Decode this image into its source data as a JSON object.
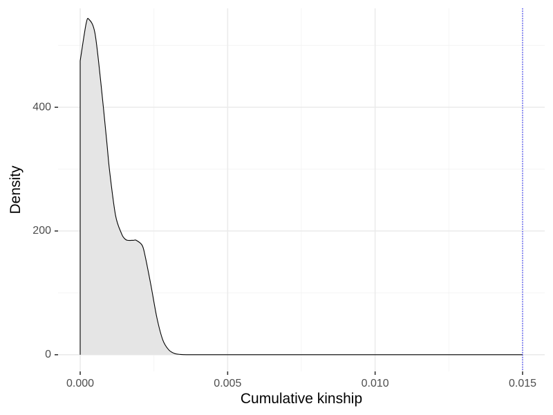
{
  "chart_data": {
    "type": "area",
    "title": "",
    "xlabel": "Cumulative kinship",
    "ylabel": "Density",
    "xlim": [
      -0.00075,
      0.01575
    ],
    "ylim": [
      -27,
      560
    ],
    "x_ticks": [
      0.0,
      0.005,
      0.01,
      0.015
    ],
    "x_tick_labels": [
      "0.000",
      "0.005",
      "0.010",
      "0.015"
    ],
    "y_ticks": [
      0,
      200,
      400
    ],
    "y_tick_labels": [
      "0",
      "200",
      "400"
    ],
    "grid": true,
    "legend": "none",
    "series": [
      {
        "x": [
          0.0,
          0.0002,
          0.0003,
          0.0005,
          0.0007,
          0.0009,
          0.001,
          0.0012,
          0.0014,
          0.0015,
          0.0016,
          0.0018,
          0.0019,
          0.0021,
          0.0022,
          0.0024,
          0.0026,
          0.0028,
          0.003,
          0.0032,
          0.0034,
          0.0036,
          0.004,
          0.005,
          0.007,
          0.01,
          0.015
        ],
        "y": [
          475,
          535,
          542,
          520,
          440,
          345,
          296,
          225,
          196,
          188,
          185,
          185,
          185,
          177,
          160,
          112,
          60,
          24,
          8,
          2,
          0.5,
          0,
          0,
          0,
          0,
          0,
          0
        ]
      }
    ],
    "reference_line": {
      "x": 0.015,
      "style": "dotted"
    },
    "colors": {
      "fill": "#e5e5e5",
      "line": "#000000",
      "reference_line": "#0000ff",
      "grid_major": "#ebebeb",
      "grid_minor": "#f2f2f2",
      "tick_text": "#4d4d4d"
    }
  }
}
